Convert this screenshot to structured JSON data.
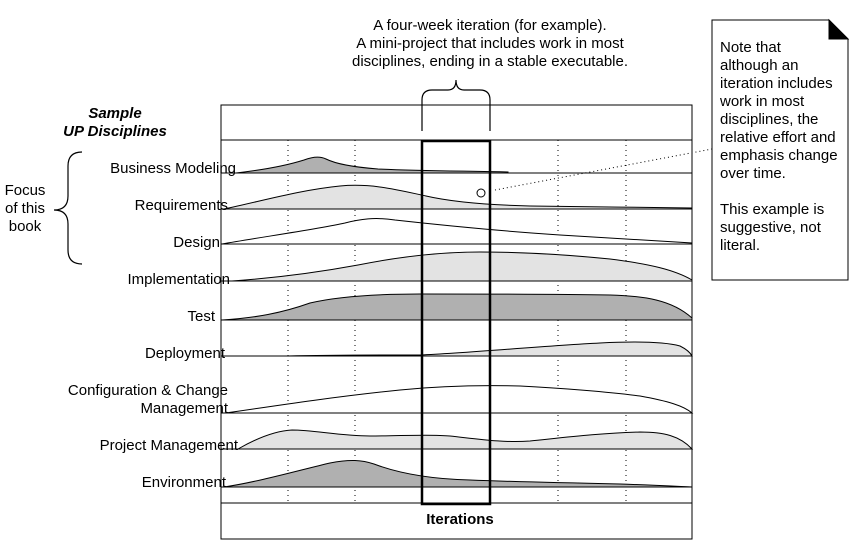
{
  "header": {
    "sample_title_line1": "Sample",
    "sample_title_line2": "UP Disciplines"
  },
  "iteration_callout": {
    "line1": "A four-week iteration (for example).",
    "line2": "A mini-project that includes work in most",
    "line3": "disciplines, ending in a stable executable."
  },
  "focus_label": {
    "line1": "Focus",
    "line2": "of this",
    "line3": "book"
  },
  "note": {
    "text": "Note that\nalthough an\niteration includes\nwork in most\ndisciplines, the\nrelative effort and\nemphasis change\nover time.\n\nThis example is\nsuggestive, not\nliteral."
  },
  "x_axis_label": "Iterations",
  "colors": {
    "dark_fill": "#b0b0b0",
    "light_fill": "#e3e3e3",
    "stroke": "#000000"
  },
  "disciplines": [
    {
      "name": "Business Modeling",
      "shade": "dark"
    },
    {
      "name": "Requirements",
      "shade": "light"
    },
    {
      "name": "Design",
      "shade": "none"
    },
    {
      "name": "Implementation",
      "shade": "light"
    },
    {
      "name": "Test",
      "shade": "dark"
    },
    {
      "name": "Deployment",
      "shade": "light"
    },
    {
      "name": "Configuration & Change\nManagement",
      "shade": "none"
    },
    {
      "name": "Project Management",
      "shade": "light"
    },
    {
      "name": "Environment",
      "shade": "dark"
    }
  ]
}
